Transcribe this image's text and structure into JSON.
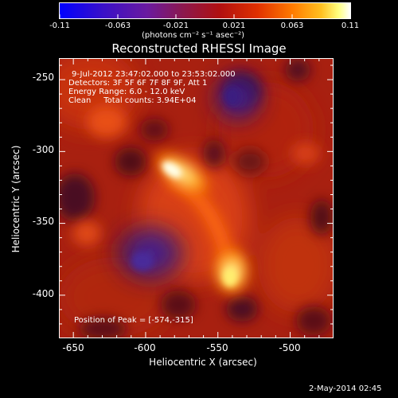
{
  "colorbar": {
    "tick_labels": [
      "-0.11",
      "-0.063",
      "-0.021",
      "0.021",
      "0.063",
      "0.11"
    ],
    "units": "(photons cm⁻² s⁻¹ asec⁻²)"
  },
  "plot": {
    "title": "Reconstructed RHESSI Image",
    "annotations": [
      "9-Jul-2012 23:47:02.000 to 23:53:02.000",
      "Detectors: 3F 5F 6F 7F 8F 9F, Att 1",
      "Energy Range: 6.0 - 12.0 keV",
      "Clean     Total counts: 3.94E+04"
    ],
    "peak_label": "Position of Peak = [-574,-315]",
    "footer": "2-May-2014 02:45"
  },
  "chart_data": {
    "type": "heatmap",
    "title": "Reconstructed RHESSI Image",
    "xlabel": "Heliocentric X (arcsec)",
    "ylabel": "Heliocentric Y (arcsec)",
    "xlim": [
      -660,
      -470
    ],
    "ylim": [
      -430,
      -235
    ],
    "x_ticks": [
      -650,
      -600,
      -550,
      -500
    ],
    "y_ticks": [
      -250,
      -300,
      -350,
      -400
    ],
    "color_range": [
      -0.11,
      0.11
    ],
    "colormap": "blue-purple-red-yellow-white",
    "peak_position": [
      -574,
      -315
    ],
    "features": [
      {
        "x": -574,
        "y": -315,
        "intensity": 0.11
      },
      {
        "x": -530,
        "y": -382,
        "intensity": 0.09
      },
      {
        "x": -600,
        "y": -362,
        "intensity": -0.06
      },
      {
        "x": -528,
        "y": -258,
        "intensity": -0.05
      }
    ]
  }
}
